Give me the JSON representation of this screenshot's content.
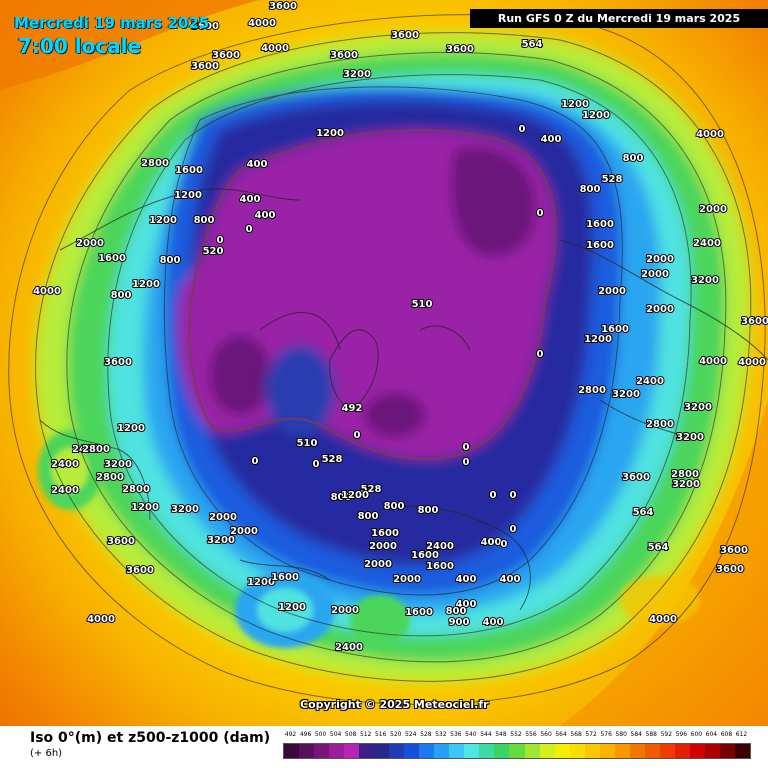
{
  "header": {
    "date": "Mercredi 19 mars 2025",
    "time": "7:00 locale",
    "run": "Run GFS 0 Z du Mercredi 19 mars 2025"
  },
  "copyright": "Copyright © 2025 Meteociel.fr",
  "footer": {
    "title": "Iso 0°(m) et z500-z1000 (dam)",
    "subtitle": "(+ 6h)"
  },
  "legend": {
    "values": [
      "492",
      "496",
      "500",
      "504",
      "508",
      "512",
      "516",
      "520",
      "524",
      "528",
      "532",
      "536",
      "540",
      "544",
      "548",
      "552",
      "556",
      "560",
      "564",
      "568",
      "572",
      "576",
      "580",
      "584",
      "588",
      "592",
      "596",
      "600",
      "604",
      "608",
      "612"
    ],
    "colors": [
      "#3c0a3c",
      "#5a0f5a",
      "#7a147a",
      "#9a1e9a",
      "#b426b4",
      "#3c1e8c",
      "#28288c",
      "#1e3cb4",
      "#1450dc",
      "#1e78f0",
      "#28a0f5",
      "#3cc8f5",
      "#50e6e6",
      "#3cdca0",
      "#3cd264",
      "#64dc3c",
      "#a0e632",
      "#d2f01e",
      "#f0f000",
      "#fadc00",
      "#fac800",
      "#fab400",
      "#fa9600",
      "#f07800",
      "#f05a00",
      "#f03c00",
      "#e61e00",
      "#d20000",
      "#aa0000",
      "#780000",
      "#3c0000"
    ]
  },
  "map_labels": [
    {
      "t": "3600",
      "p": [
        205,
        25
      ]
    },
    {
      "t": "3600",
      "p": [
        283,
        5
      ]
    },
    {
      "t": "4000",
      "p": [
        262,
        22
      ]
    },
    {
      "t": "3600",
      "p": [
        226,
        54
      ]
    },
    {
      "t": "3600",
      "p": [
        205,
        65
      ]
    },
    {
      "t": "4000",
      "p": [
        275,
        47
      ]
    },
    {
      "t": "3600",
      "p": [
        344,
        54
      ]
    },
    {
      "t": "3200",
      "p": [
        357,
        73
      ]
    },
    {
      "t": "3600",
      "p": [
        405,
        34
      ]
    },
    {
      "t": "3600",
      "p": [
        460,
        48
      ]
    },
    {
      "t": "564",
      "p": [
        532,
        43
      ]
    },
    {
      "t": "1200",
      "p": [
        330,
        132
      ]
    },
    {
      "t": "1200",
      "p": [
        575,
        103
      ]
    },
    {
      "t": "1200",
      "p": [
        596,
        114
      ]
    },
    {
      "t": "0",
      "p": [
        522,
        128
      ]
    },
    {
      "t": "400",
      "p": [
        551,
        138
      ]
    },
    {
      "t": "800",
      "p": [
        633,
        157
      ]
    },
    {
      "t": "528",
      "p": [
        612,
        178
      ]
    },
    {
      "t": "800",
      "p": [
        590,
        188
      ]
    },
    {
      "t": "0",
      "p": [
        540,
        212
      ]
    },
    {
      "t": "4000",
      "p": [
        710,
        133
      ]
    },
    {
      "t": "2000",
      "p": [
        713,
        208
      ]
    },
    {
      "t": "1600",
      "p": [
        600,
        223
      ]
    },
    {
      "t": "1600",
      "p": [
        600,
        244
      ]
    },
    {
      "t": "2000",
      "p": [
        660,
        258
      ]
    },
    {
      "t": "2400",
      "p": [
        707,
        242
      ]
    },
    {
      "t": "2000",
      "p": [
        655,
        273
      ]
    },
    {
      "t": "3200",
      "p": [
        705,
        279
      ]
    },
    {
      "t": "2000",
      "p": [
        612,
        290
      ]
    },
    {
      "t": "1600",
      "p": [
        615,
        328
      ]
    },
    {
      "t": "1200",
      "p": [
        598,
        338
      ]
    },
    {
      "t": "2000",
      "p": [
        660,
        308
      ]
    },
    {
      "t": "4000",
      "p": [
        713,
        360
      ]
    },
    {
      "t": "4000",
      "p": [
        752,
        361
      ]
    },
    {
      "t": "3600",
      "p": [
        755,
        320
      ]
    },
    {
      "t": "2800",
      "p": [
        592,
        389
      ]
    },
    {
      "t": "3200",
      "p": [
        626,
        393
      ]
    },
    {
      "t": "2400",
      "p": [
        650,
        380
      ]
    },
    {
      "t": "3200",
      "p": [
        698,
        406
      ]
    },
    {
      "t": "2800",
      "p": [
        660,
        423
      ]
    },
    {
      "t": "3200",
      "p": [
        690,
        436
      ]
    },
    {
      "t": "2800",
      "p": [
        685,
        473
      ]
    },
    {
      "t": "3200",
      "p": [
        686,
        483
      ]
    },
    {
      "t": "3600",
      "p": [
        636,
        476
      ]
    },
    {
      "t": "564",
      "p": [
        643,
        511
      ]
    },
    {
      "t": "564",
      "p": [
        658,
        546
      ]
    },
    {
      "t": "3600",
      "p": [
        734,
        549
      ]
    },
    {
      "t": "3600",
      "p": [
        730,
        568
      ]
    },
    {
      "t": "4000",
      "p": [
        663,
        618
      ]
    },
    {
      "t": "0",
      "p": [
        540,
        353
      ]
    },
    {
      "t": "510",
      "p": [
        422,
        303
      ]
    },
    {
      "t": "492",
      "p": [
        352,
        407
      ]
    },
    {
      "t": "510",
      "p": [
        307,
        442
      ]
    },
    {
      "t": "528",
      "p": [
        332,
        458
      ]
    },
    {
      "t": "528",
      "p": [
        371,
        488
      ]
    },
    {
      "t": "0",
      "p": [
        255,
        460
      ]
    },
    {
      "t": "0",
      "p": [
        316,
        463
      ]
    },
    {
      "t": "0",
      "p": [
        357,
        434
      ]
    },
    {
      "t": "0",
      "p": [
        466,
        446
      ]
    },
    {
      "t": "0",
      "p": [
        466,
        461
      ]
    },
    {
      "t": "400",
      "p": [
        257,
        163
      ]
    },
    {
      "t": "400",
      "p": [
        250,
        198
      ]
    },
    {
      "t": "1600",
      "p": [
        189,
        169
      ]
    },
    {
      "t": "2800",
      "p": [
        155,
        162
      ]
    },
    {
      "t": "1200",
      "p": [
        188,
        194
      ]
    },
    {
      "t": "800",
      "p": [
        204,
        219
      ]
    },
    {
      "t": "1200",
      "p": [
        163,
        219
      ]
    },
    {
      "t": "800",
      "p": [
        170,
        259
      ]
    },
    {
      "t": "1200",
      "p": [
        146,
        283
      ]
    },
    {
      "t": "800",
      "p": [
        121,
        294
      ]
    },
    {
      "t": "2000",
      "p": [
        90,
        242
      ]
    },
    {
      "t": "1600",
      "p": [
        112,
        257
      ]
    },
    {
      "t": "400",
      "p": [
        265,
        214
      ]
    },
    {
      "t": "0",
      "p": [
        249,
        228
      ]
    },
    {
      "t": "0",
      "p": [
        220,
        239
      ]
    },
    {
      "t": "520",
      "p": [
        213,
        250
      ]
    },
    {
      "t": "4000",
      "p": [
        47,
        290
      ]
    },
    {
      "t": "3600",
      "p": [
        118,
        361
      ]
    },
    {
      "t": "1200",
      "p": [
        131,
        427
      ]
    },
    {
      "t": "2400",
      "p": [
        86,
        448
      ]
    },
    {
      "t": "2800",
      "p": [
        96,
        448
      ]
    },
    {
      "t": "2400",
      "p": [
        65,
        463
      ]
    },
    {
      "t": "2400",
      "p": [
        65,
        489
      ]
    },
    {
      "t": "3200",
      "p": [
        118,
        463
      ]
    },
    {
      "t": "2800",
      "p": [
        110,
        476
      ]
    },
    {
      "t": "2800",
      "p": [
        136,
        488
      ]
    },
    {
      "t": "1200",
      "p": [
        145,
        506
      ]
    },
    {
      "t": "3200",
      "p": [
        185,
        508
      ]
    },
    {
      "t": "3600",
      "p": [
        121,
        540
      ]
    },
    {
      "t": "3600",
      "p": [
        140,
        569
      ]
    },
    {
      "t": "4000",
      "p": [
        101,
        618
      ]
    },
    {
      "t": "2000",
      "p": [
        223,
        516
      ]
    },
    {
      "t": "2000",
      "p": [
        244,
        530
      ]
    },
    {
      "t": "3200",
      "p": [
        221,
        539
      ]
    },
    {
      "t": "1200",
      "p": [
        261,
        581
      ]
    },
    {
      "t": "1600",
      "p": [
        285,
        576
      ]
    },
    {
      "t": "1200",
      "p": [
        292,
        606
      ]
    },
    {
      "t": "2000",
      "p": [
        345,
        609
      ]
    },
    {
      "t": "2400",
      "p": [
        349,
        646
      ]
    },
    {
      "t": "800",
      "p": [
        341,
        496
      ]
    },
    {
      "t": "1200",
      "p": [
        355,
        494
      ]
    },
    {
      "t": "800",
      "p": [
        368,
        515
      ]
    },
    {
      "t": "800",
      "p": [
        394,
        505
      ]
    },
    {
      "t": "1600",
      "p": [
        385,
        532
      ]
    },
    {
      "t": "2000",
      "p": [
        383,
        545
      ]
    },
    {
      "t": "2000",
      "p": [
        378,
        563
      ]
    },
    {
      "t": "2000",
      "p": [
        407,
        578
      ]
    },
    {
      "t": "1600",
      "p": [
        425,
        554
      ]
    },
    {
      "t": "1600",
      "p": [
        440,
        565
      ]
    },
    {
      "t": "2400",
      "p": [
        440,
        545
      ]
    },
    {
      "t": "800",
      "p": [
        428,
        509
      ]
    },
    {
      "t": "400",
      "p": [
        466,
        578
      ]
    },
    {
      "t": "400",
      "p": [
        466,
        603
      ]
    },
    {
      "t": "800",
      "p": [
        456,
        610
      ]
    },
    {
      "t": "900",
      "p": [
        459,
        621
      ]
    },
    {
      "t": "400",
      "p": [
        493,
        621
      ]
    },
    {
      "t": "400",
      "p": [
        491,
        541
      ]
    },
    {
      "t": "400",
      "p": [
        510,
        578
      ]
    },
    {
      "t": "0",
      "p": [
        493,
        494
      ]
    },
    {
      "t": "0",
      "p": [
        513,
        494
      ]
    },
    {
      "t": "0",
      "p": [
        513,
        528
      ]
    },
    {
      "t": "0",
      "p": [
        504,
        543
      ]
    },
    {
      "t": "1600",
      "p": [
        419,
        611
      ]
    }
  ]
}
